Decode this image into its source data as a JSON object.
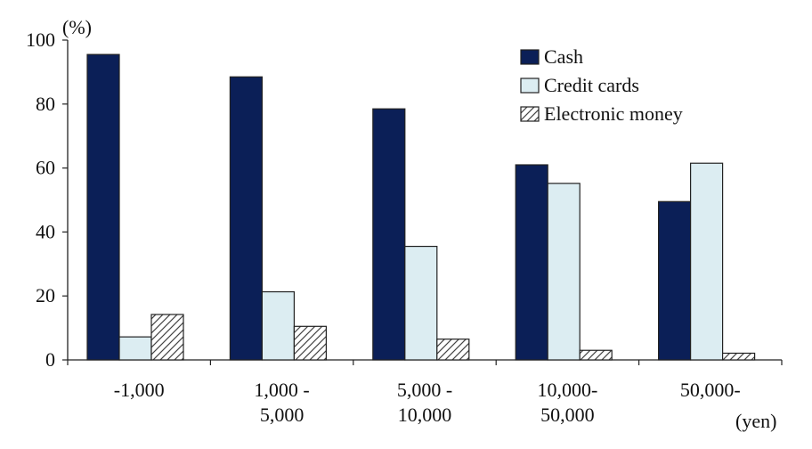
{
  "chart_data": {
    "type": "bar",
    "title": "",
    "xlabel": "",
    "ylabel": "",
    "y_unit": "(%)",
    "x_unit": "(yen)",
    "ylim": [
      0,
      100
    ],
    "yticks": [
      0,
      20,
      40,
      60,
      80,
      100
    ],
    "categories": [
      "-1,000",
      "1,000 - 5,000",
      "5,000 - 10,000",
      "10,000- 50,000",
      "50,000-"
    ],
    "category_lines": [
      [
        "-1,000"
      ],
      [
        "1,000 -",
        "5,000"
      ],
      [
        "5,000 -",
        "10,000"
      ],
      [
        "10,000-",
        "50,000"
      ],
      [
        "50,000-"
      ]
    ],
    "series": [
      {
        "name": "Cash",
        "values": [
          95.5,
          88.5,
          78.5,
          61,
          49.5
        ],
        "color": "#0b1f57",
        "pattern": "solid"
      },
      {
        "name": "Credit cards",
        "values": [
          7.2,
          21.3,
          35.5,
          55.2,
          61.5
        ],
        "color": "#dcedf2",
        "pattern": "solid"
      },
      {
        "name": "Electronic money",
        "values": [
          14.2,
          10.5,
          6.5,
          3,
          2.1
        ],
        "color": "#ffffff",
        "pattern": "diagonal-hatch"
      }
    ],
    "legend_position": "top-right",
    "grid": false
  }
}
